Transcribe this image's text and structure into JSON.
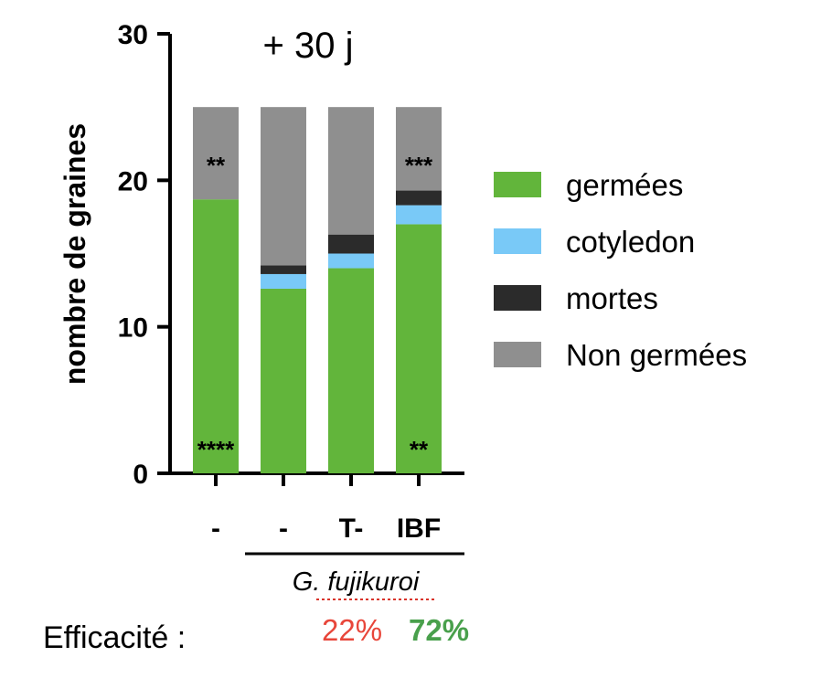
{
  "colors": {
    "germees": "#62b53b",
    "cotyledon": "#79c9f7",
    "mortes": "#2b2b2b",
    "non_germees": "#8f8f8f",
    "efficacite_low": "#e8463a",
    "efficacite_high": "#49a04c",
    "spellcheck": "#d9332a"
  },
  "chart_data": {
    "type": "bar",
    "stacked": true,
    "title": "+ 30 j",
    "ylabel": "nombre de graines",
    "xlabel": "",
    "ylim": [
      0,
      30
    ],
    "yticks": [
      "0",
      "10",
      "20",
      "30"
    ],
    "grid": false,
    "legend_position": "right",
    "categories": [
      "-",
      "-",
      "T-",
      "IBF"
    ],
    "group_label": "G. fujikuroi",
    "series": [
      {
        "name": "germées",
        "key": "germees",
        "values": [
          18.7,
          12.6,
          14.0,
          17.0
        ]
      },
      {
        "name": "cotyledon",
        "key": "cotyledon",
        "values": [
          0,
          1.0,
          1.0,
          1.3
        ]
      },
      {
        "name": "mortes",
        "key": "mortes",
        "values": [
          0,
          0.6,
          1.3,
          1.0
        ]
      },
      {
        "name": "Non germées",
        "key": "non_germees",
        "values": [
          6.3,
          10.8,
          8.7,
          5.7
        ]
      }
    ],
    "annotations_top": [
      "**",
      "",
      "",
      "***"
    ],
    "annotations_bottom": [
      "****",
      "",
      "",
      "**"
    ]
  },
  "legend_order": [
    "germees",
    "cotyledon",
    "mortes",
    "non_germees"
  ],
  "efficacite": {
    "label": "Efficacité :",
    "values": [
      "22%",
      "72%"
    ]
  }
}
